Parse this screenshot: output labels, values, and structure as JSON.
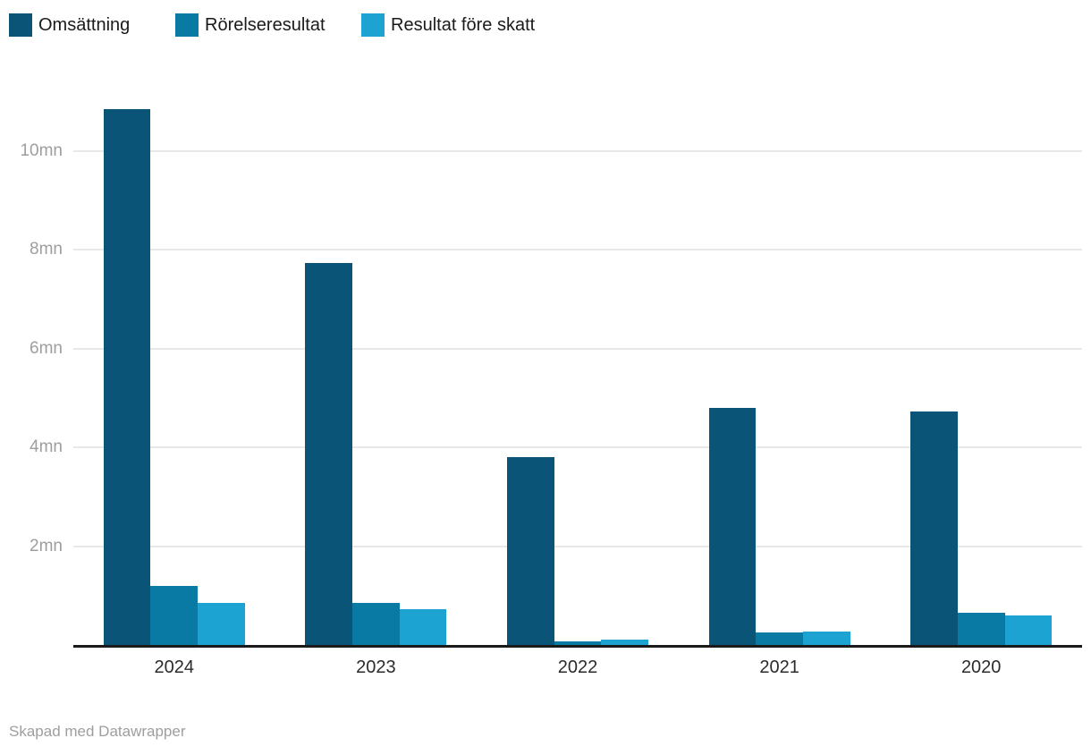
{
  "legend": {
    "items": [
      {
        "label": "Omsättning",
        "color": "#0a5477",
        "swatch_icon": "legend-swatch-omsattning"
      },
      {
        "label": "Rörelseresultat",
        "color": "#087aa4",
        "swatch_icon": "legend-swatch-rorelseresultat"
      },
      {
        "label": "Resultat före skatt",
        "color": "#1da3d2",
        "swatch_icon": "legend-swatch-resultat-fore-skatt"
      }
    ]
  },
  "footer": {
    "credit": "Skapad med Datawrapper"
  },
  "chart_data": {
    "type": "bar",
    "title": "",
    "xlabel": "",
    "ylabel": "",
    "unit": "mn",
    "categories": [
      "2024",
      "2023",
      "2022",
      "2021",
      "2020"
    ],
    "series": [
      {
        "name": "Omsättning",
        "color": "#0a5477",
        "values": [
          10.85,
          7.73,
          3.8,
          4.8,
          4.72
        ]
      },
      {
        "name": "Rörelseresultat",
        "color": "#087aa4",
        "values": [
          1.2,
          0.86,
          0.07,
          0.25,
          0.66
        ]
      },
      {
        "name": "Resultat före skatt",
        "color": "#1da3d2",
        "values": [
          0.85,
          0.72,
          0.11,
          0.28,
          0.59
        ]
      }
    ],
    "y_ticks": [
      {
        "value": 2,
        "label": "2mn"
      },
      {
        "value": 4,
        "label": "4mn"
      },
      {
        "value": 6,
        "label": "6mn"
      },
      {
        "value": 8,
        "label": "8mn"
      },
      {
        "value": 10,
        "label": "10mn"
      }
    ],
    "ylim": [
      0,
      11
    ],
    "grid": "horizontal",
    "legend_position": "top-left"
  }
}
